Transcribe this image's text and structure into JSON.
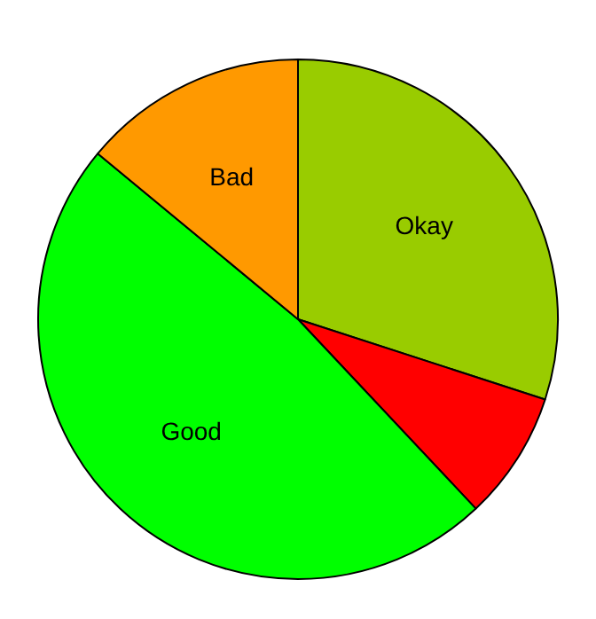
{
  "chart_data": {
    "type": "pie",
    "categories": [
      "Okay",
      null,
      "Good",
      "Bad"
    ],
    "values": [
      30,
      8,
      48,
      14
    ],
    "colors": [
      "#99cc00",
      "#ff0000",
      "#00ff00",
      "#ff9900"
    ],
    "legend": false
  }
}
